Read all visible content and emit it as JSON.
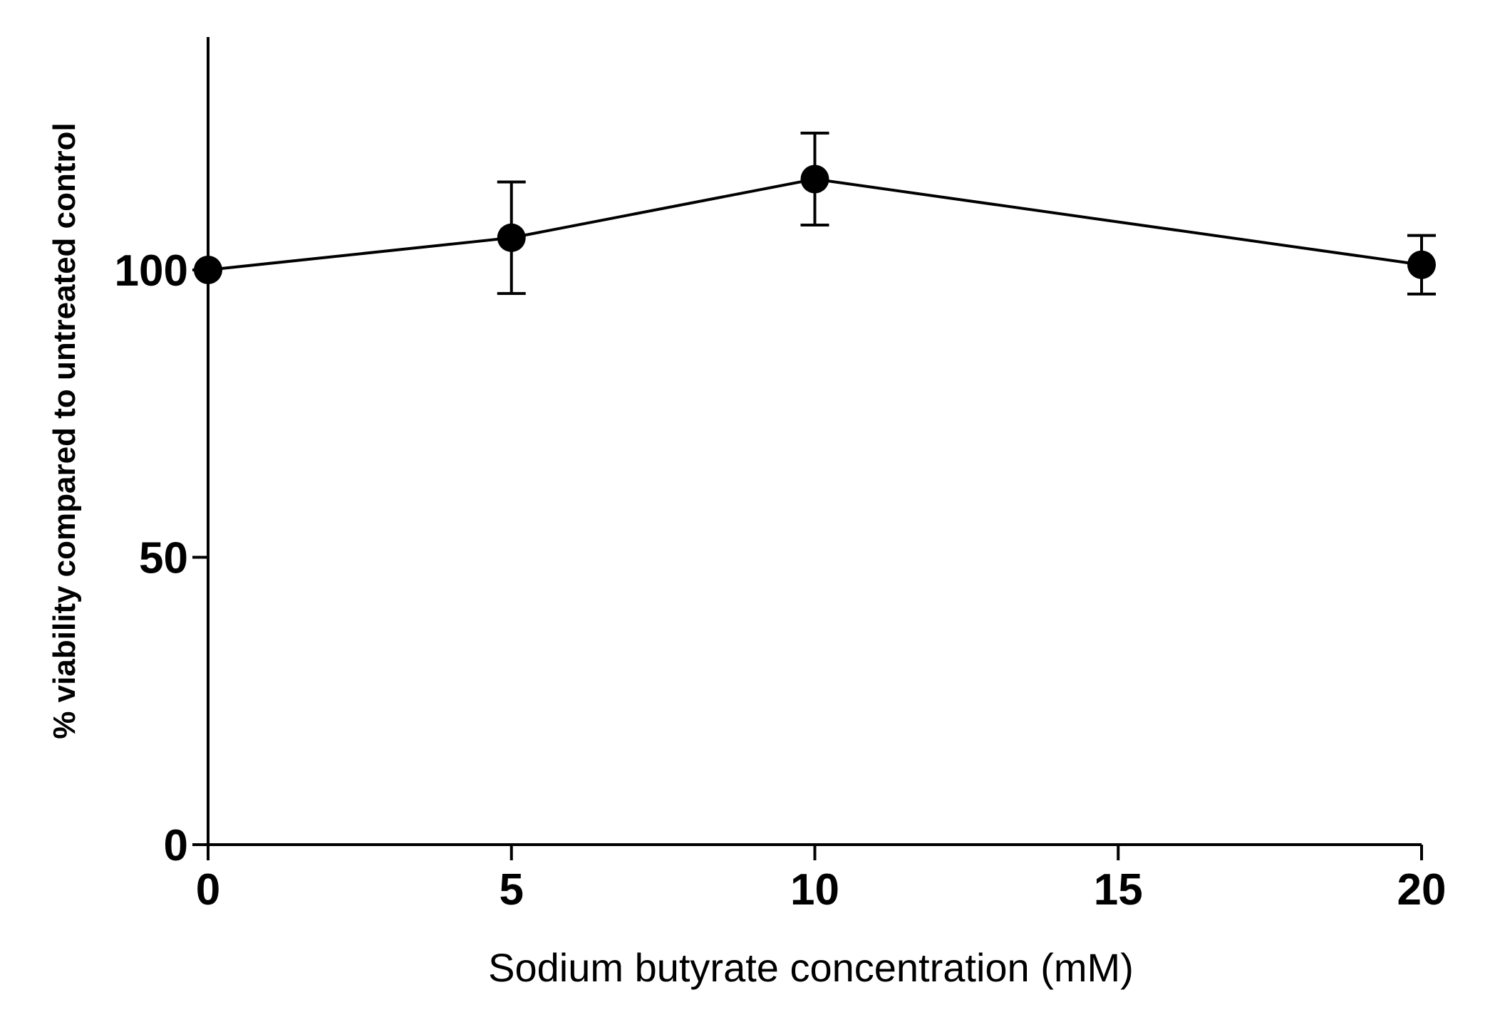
{
  "chart_data": {
    "type": "line",
    "title": "",
    "xlabel": "Sodium butyrate concentration (mM)",
    "ylabel": "% viability compared to untreated control",
    "xlim": [
      0,
      20
    ],
    "ylim": [
      0,
      140
    ],
    "xticks": [
      0,
      5,
      10,
      15,
      20
    ],
    "yticks": [
      0,
      50,
      100
    ],
    "grid": false,
    "series": [
      {
        "x": [
          0,
          5,
          10,
          20
        ],
        "values": [
          100,
          105.6,
          115.8,
          100.9
        ],
        "error": [
          0,
          9.7,
          8.0,
          5.1
        ],
        "color": "#000000",
        "marker": "circle"
      }
    ]
  }
}
